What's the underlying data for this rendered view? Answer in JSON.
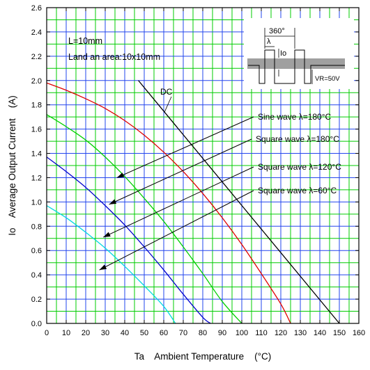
{
  "chart_data": {
    "type": "line",
    "title": "",
    "xlabel": "Ta    Ambient Temperature    (°C)",
    "ylabel": "Io    Average Output Current    (A)",
    "xlim": [
      0,
      160
    ],
    "ylim": [
      0,
      2.6
    ],
    "grid": true,
    "x_ticks": [
      "0",
      "10",
      "20",
      "30",
      "40",
      "50",
      "60",
      "70",
      "80",
      "90",
      "100",
      "110",
      "120",
      "130",
      "140",
      "150",
      "160"
    ],
    "y_ticks": [
      "0.0",
      "0.2",
      "0.4",
      "0.6",
      "0.8",
      "1.0",
      "1.2",
      "1.4",
      "1.6",
      "1.8",
      "2.0",
      "2.2",
      "2.4",
      "2.6"
    ],
    "notes": [
      "L=10mm",
      "Land an area:10x10mm"
    ],
    "series": [
      {
        "name": "DC",
        "color": "#000000",
        "x": [
          47,
          150
        ],
        "y": [
          2.0,
          0.0
        ]
      },
      {
        "name": "Sine wave λ=180°C",
        "color": "#e00000",
        "x": [
          0,
          10,
          20,
          30,
          40,
          50,
          60,
          70,
          80,
          90,
          100,
          110,
          120,
          125
        ],
        "y": [
          1.98,
          1.92,
          1.85,
          1.77,
          1.67,
          1.55,
          1.41,
          1.25,
          1.07,
          0.87,
          0.65,
          0.41,
          0.16,
          0.0
        ]
      },
      {
        "name": "Square wave λ=180°C",
        "color": "#00d000",
        "x": [
          0,
          10,
          20,
          30,
          40,
          50,
          60,
          70,
          80,
          90,
          100
        ],
        "y": [
          1.72,
          1.62,
          1.51,
          1.37,
          1.21,
          1.03,
          0.84,
          0.63,
          0.41,
          0.18,
          0.0
        ]
      },
      {
        "name": "Square wave λ=120°C",
        "color": "#0000cc",
        "x": [
          0,
          10,
          20,
          30,
          40,
          50,
          60,
          70,
          80,
          84
        ],
        "y": [
          1.37,
          1.25,
          1.12,
          0.97,
          0.81,
          0.63,
          0.44,
          0.24,
          0.05,
          0.0
        ]
      },
      {
        "name": "Square wave λ=60°C",
        "color": "#00d8e0",
        "x": [
          0,
          10,
          20,
          30,
          40,
          50,
          60,
          66
        ],
        "y": [
          0.97,
          0.87,
          0.75,
          0.62,
          0.47,
          0.31,
          0.14,
          0.0
        ]
      }
    ],
    "callouts": [
      {
        "text": "DC",
        "series": 0
      },
      {
        "text": "Sine wave λ=180°C",
        "series": 1,
        "arrow_to": [
          36,
          1.2
        ]
      },
      {
        "text": "Square wave λ=180°C",
        "series": 2,
        "arrow_to": [
          32,
          0.98
        ]
      },
      {
        "text": "Square wave λ=120°C",
        "series": 3,
        "arrow_to": [
          29,
          0.71
        ]
      },
      {
        "text": "Square wave λ=60°C",
        "series": 4,
        "arrow_to": [
          27,
          0.44
        ]
      }
    ],
    "inset": {
      "labels": [
        "360°",
        "λ",
        "Io",
        "VR=50V"
      ]
    }
  }
}
